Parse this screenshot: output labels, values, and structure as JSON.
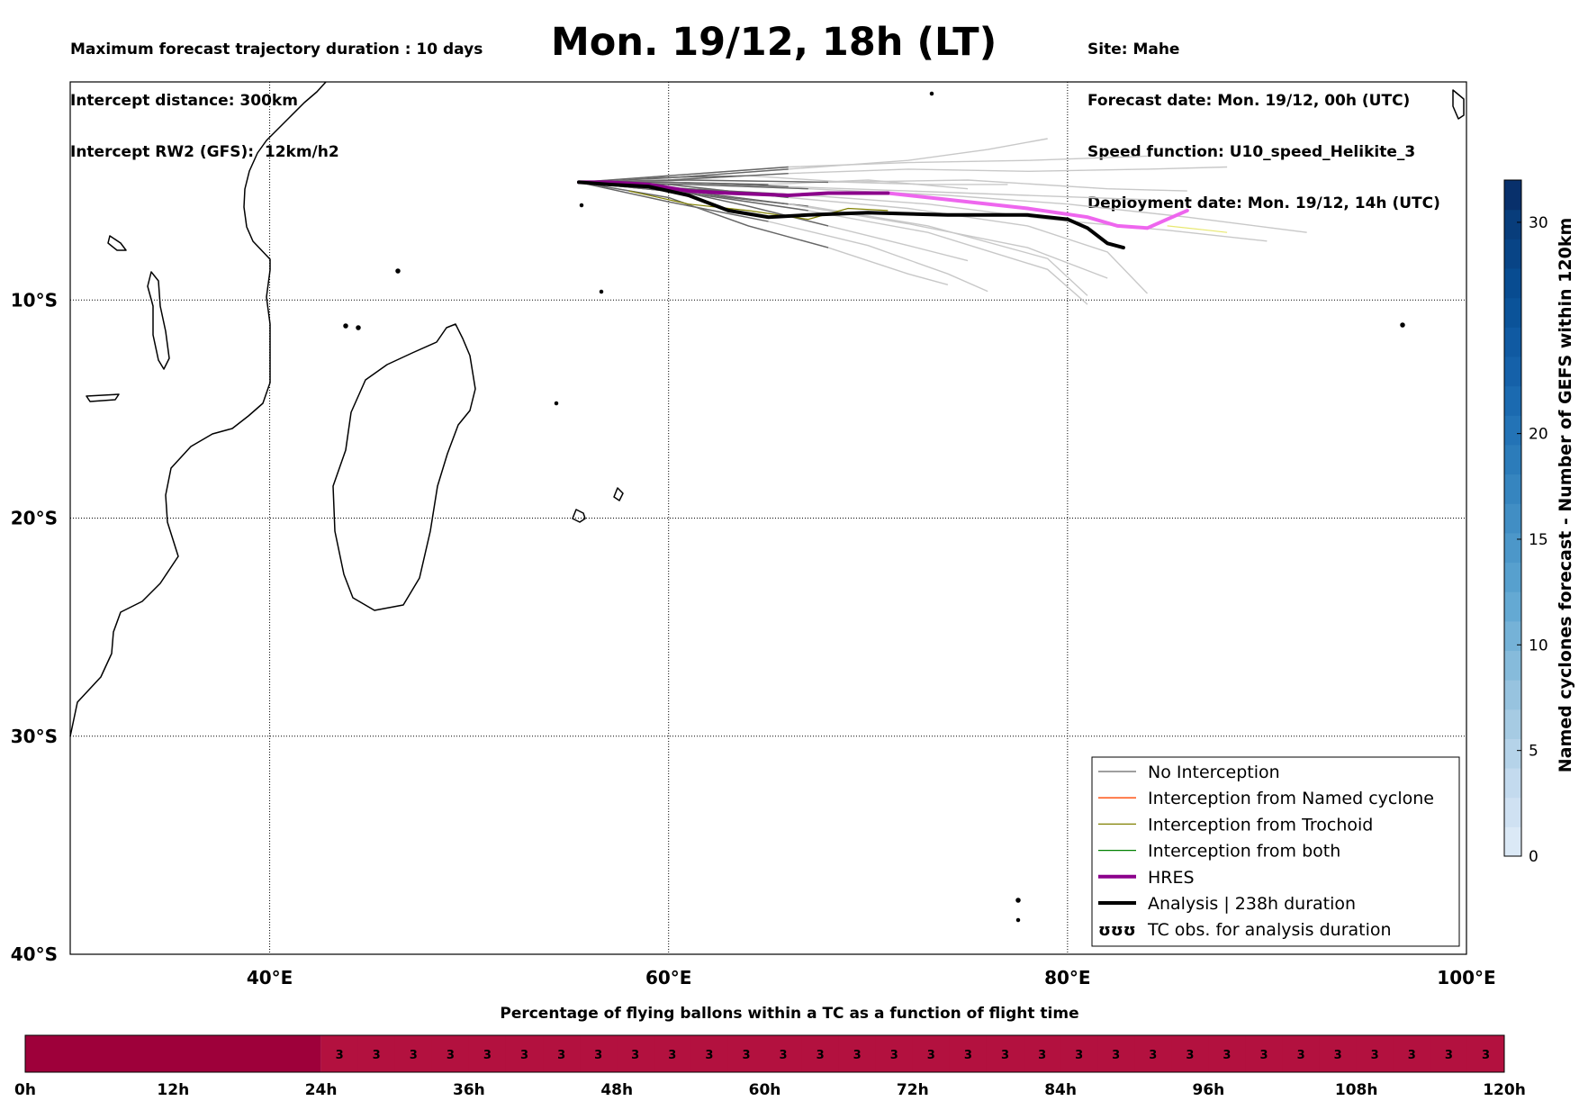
{
  "header": {
    "left_lines": [
      "Maximum forecast trajectory duration : 10 days",
      "Intercept distance: 300km",
      "Intercept RW2 (GFS):  12km/h2"
    ],
    "right_lines": [
      "Site: Mahe",
      "Forecast date: Mon. 19/12, 00h (UTC)",
      "Speed function: U10_speed_Helikite_3",
      "Deployment date: Mon. 19/12, 14h (UTC)"
    ],
    "title": "Mon. 19/12, 18h (LT)"
  },
  "map": {
    "lon_range": [
      30,
      100
    ],
    "lat_range": [
      -40,
      0
    ],
    "x_ticks": [
      {
        "lon": 40,
        "label": "40°E"
      },
      {
        "lon": 60,
        "label": "60°E"
      },
      {
        "lon": 80,
        "label": "80°E"
      },
      {
        "lon": 100,
        "label": "100°E"
      }
    ],
    "y_ticks": [
      {
        "lat": -10,
        "label": "10°S"
      },
      {
        "lat": -20,
        "label": "20°S"
      },
      {
        "lat": -30,
        "label": "30°S"
      },
      {
        "lat": -40,
        "label": "40°S"
      }
    ],
    "grid": true,
    "colors": {
      "no_interception_dark": "#666666",
      "no_interception_light": "#c8c8c8",
      "named_cyclone": "#ff4500",
      "trochoid": "#808000",
      "trochoid_light": "#e8e870",
      "both": "#008000",
      "hres": "#8b008b",
      "hres_light": "#ee66ee",
      "analysis": "#000000"
    },
    "trajectories": {
      "analysis": [
        [
          55.5,
          -4.6
        ],
        [
          57,
          -4.7
        ],
        [
          59,
          -4.8
        ],
        [
          61,
          -5.2
        ],
        [
          63,
          -5.9
        ],
        [
          65,
          -6.2
        ],
        [
          67,
          -6.1
        ],
        [
          70,
          -6.0
        ],
        [
          74,
          -6.1
        ],
        [
          78,
          -6.1
        ],
        [
          80,
          -6.3
        ],
        [
          81,
          -6.7
        ],
        [
          82,
          -7.4
        ],
        [
          82.8,
          -7.6
        ]
      ],
      "hres": [
        [
          55.5,
          -4.6
        ],
        [
          57,
          -4.6
        ],
        [
          59,
          -4.7
        ],
        [
          61,
          -5.0
        ],
        [
          63,
          -5.1
        ],
        [
          66,
          -5.2
        ],
        [
          68,
          -5.1
        ],
        [
          70,
          -5.1
        ],
        [
          71,
          -5.1
        ],
        [
          74,
          -5.4
        ],
        [
          78,
          -5.8
        ],
        [
          81,
          -6.2
        ],
        [
          82.5,
          -6.6
        ],
        [
          84,
          -6.7
        ],
        [
          85,
          -6.3
        ],
        [
          86,
          -5.9
        ]
      ],
      "hres_dark_until_lon": 71,
      "gefs": [
        [
          [
            55.5,
            -4.6
          ],
          [
            60,
            -4.6
          ],
          [
            65,
            -4.7
          ],
          [
            70,
            -4.5
          ],
          [
            75,
            -4.9
          ]
        ],
        [
          [
            55.5,
            -4.6
          ],
          [
            60,
            -4.9
          ],
          [
            64,
            -5.7
          ],
          [
            68,
            -6.6
          ],
          [
            72,
            -7.5
          ],
          [
            75,
            -8.2
          ]
        ],
        [
          [
            55.5,
            -4.6
          ],
          [
            60,
            -5.3
          ],
          [
            64,
            -6.6
          ],
          [
            68,
            -7.6
          ],
          [
            72,
            -8.8
          ],
          [
            74,
            -9.3
          ]
        ],
        [
          [
            55.5,
            -4.6
          ],
          [
            59,
            -4.4
          ],
          [
            64,
            -4.3
          ],
          [
            69,
            -4.6
          ],
          [
            73,
            -4.7
          ],
          [
            77,
            -4.7
          ]
        ],
        [
          [
            55.5,
            -4.6
          ],
          [
            60,
            -5.5
          ],
          [
            65,
            -6.4
          ],
          [
            70,
            -7.5
          ],
          [
            74,
            -8.8
          ],
          [
            76,
            -9.6
          ]
        ],
        [
          [
            55.5,
            -4.6
          ],
          [
            60,
            -4.7
          ],
          [
            66,
            -5.3
          ],
          [
            72,
            -5.8
          ],
          [
            78,
            -6.6
          ],
          [
            82,
            -7.8
          ],
          [
            84,
            -9.7
          ]
        ],
        [
          [
            55.5,
            -4.6
          ],
          [
            60,
            -4.5
          ],
          [
            66,
            -4.2
          ],
          [
            72,
            -4.0
          ],
          [
            78,
            -4.1
          ],
          [
            84,
            -4.0
          ],
          [
            88,
            -3.9
          ]
        ],
        [
          [
            55.5,
            -4.6
          ],
          [
            61,
            -4.9
          ],
          [
            67,
            -5.2
          ],
          [
            73,
            -5.6
          ],
          [
            79,
            -6.3
          ],
          [
            85,
            -6.8
          ],
          [
            90,
            -7.3
          ]
        ],
        [
          [
            55.5,
            -4.6
          ],
          [
            61,
            -4.7
          ],
          [
            67,
            -4.9
          ],
          [
            74,
            -5.2
          ],
          [
            80,
            -5.6
          ],
          [
            86,
            -6.2
          ],
          [
            92,
            -6.9
          ]
        ],
        [
          [
            55.5,
            -4.6
          ],
          [
            60,
            -4.6
          ],
          [
            66,
            -4.8
          ],
          [
            72,
            -5.0
          ],
          [
            78,
            -5.2
          ],
          [
            84,
            -5.4
          ]
        ],
        [
          [
            55.5,
            -4.6
          ],
          [
            61,
            -5.1
          ],
          [
            67,
            -5.7
          ],
          [
            73,
            -6.6
          ],
          [
            79,
            -8.1
          ],
          [
            81,
            -9.8
          ]
        ],
        [
          [
            55.5,
            -4.6
          ],
          [
            60,
            -4.4
          ],
          [
            66,
            -4.0
          ],
          [
            72,
            -3.6
          ],
          [
            76,
            -3.1
          ],
          [
            79,
            -2.6
          ]
        ],
        [
          [
            55.5,
            -4.6
          ],
          [
            60,
            -4.9
          ],
          [
            66,
            -5.6
          ],
          [
            72,
            -6.5
          ],
          [
            78,
            -7.6
          ],
          [
            82,
            -9.0
          ]
        ],
        [
          [
            55.5,
            -4.6
          ],
          [
            60,
            -4.3
          ],
          [
            66,
            -3.9
          ],
          [
            72,
            -3.7
          ],
          [
            78,
            -3.6
          ],
          [
            84,
            -3.4
          ]
        ],
        [
          [
            55.5,
            -4.6
          ],
          [
            61,
            -4.5
          ],
          [
            68,
            -4.6
          ],
          [
            75,
            -4.5
          ],
          [
            82,
            -4.9
          ],
          [
            86,
            -5.0
          ]
        ],
        [
          [
            55.5,
            -4.6
          ],
          [
            61,
            -5.1
          ],
          [
            67,
            -5.9
          ],
          [
            73,
            -6.9
          ],
          [
            79,
            -8.6
          ],
          [
            81,
            -10.2
          ]
        ]
      ],
      "trochoid": [
        [
          58,
          -5.0
        ],
        [
          61,
          -5.6
        ],
        [
          64,
          -5.9
        ],
        [
          67,
          -6.3
        ],
        [
          69,
          -5.8
        ],
        [
          71,
          -5.9
        ]
      ],
      "trochoid_light": [
        [
          85,
          -6.6
        ],
        [
          87,
          -6.8
        ],
        [
          88,
          -6.9
        ]
      ]
    },
    "legend": {
      "placement": "lower-right",
      "entries": [
        {
          "label": "No Interception",
          "color": "#666666",
          "style": "thin"
        },
        {
          "label": "Interception from Named cyclone",
          "color": "#ff4500",
          "style": "thin"
        },
        {
          "label": "Interception from Trochoid",
          "color": "#808000",
          "style": "thin"
        },
        {
          "label": "Interception from both",
          "color": "#008000",
          "style": "thin"
        },
        {
          "label": "HRES",
          "color": "#8b008b",
          "style": "thick"
        },
        {
          "label": "Analysis | 238h duration",
          "color": "#000000",
          "style": "thick"
        },
        {
          "label": "TC obs. for analysis duration",
          "color": "#000000",
          "style": "symbol",
          "symbol": "ʊʊʊ"
        }
      ]
    }
  },
  "colorbar": {
    "label": "Named cyclones forecast - Number of GEFS within 120km",
    "range": [
      0,
      32
    ],
    "ticks": [
      0,
      5,
      10,
      15,
      20,
      30
    ],
    "colors": [
      "#dbe9f6",
      "#cfe1f2",
      "#c3daee",
      "#b5d3e9",
      "#a6cbe3",
      "#97c3df",
      "#86bbdb",
      "#75b2d7",
      "#64a9d3",
      "#57a0ce",
      "#4c97c9",
      "#418ec4",
      "#3685bf",
      "#2c7cba",
      "#2373b6",
      "#1b6ab0",
      "#1561a9",
      "#105aa2",
      "#0b5399",
      "#084c91",
      "#084486",
      "#083d7b",
      "#08306b"
    ]
  },
  "time_bar": {
    "title": "Percentage of flying ballons within a TC as a function of flight time",
    "range_hours": [
      0,
      120
    ],
    "ticks": [
      "0h",
      "12h",
      "24h",
      "36h",
      "48h",
      "60h",
      "72h",
      "84h",
      "96h",
      "108h",
      "120h"
    ],
    "color_zero": "#9e003a",
    "color_value": "#b3113f",
    "cell_hours": 3,
    "zero_until_hours": 24,
    "cell_value": "3"
  }
}
